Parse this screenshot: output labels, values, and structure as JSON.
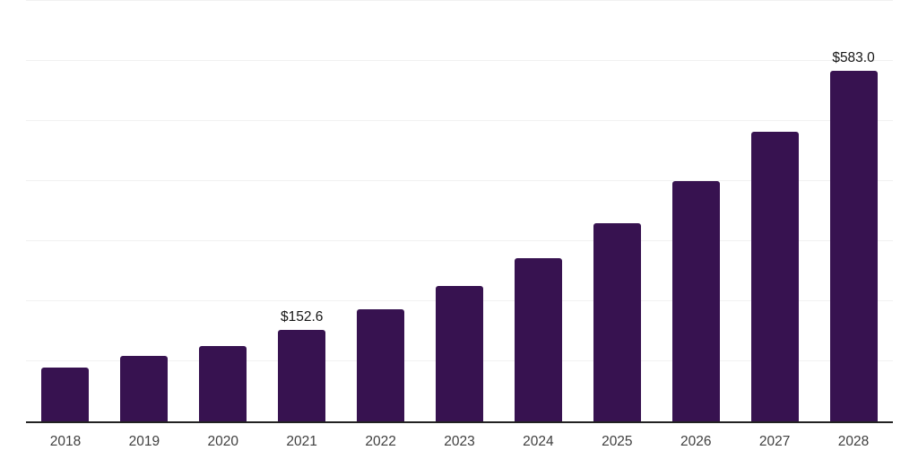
{
  "chart_data": {
    "type": "bar",
    "title": "",
    "xlabel": "",
    "ylabel": "",
    "categories": [
      "2018",
      "2019",
      "2020",
      "2021",
      "2022",
      "2023",
      "2024",
      "2025",
      "2026",
      "2027",
      "2028"
    ],
    "values": [
      90,
      109,
      126,
      152.6,
      186,
      225,
      272,
      330,
      400,
      482,
      583
    ],
    "data_labels": [
      "",
      "",
      "",
      "$152.6",
      "",
      "",
      "",
      "",
      "",
      "",
      "$583.0"
    ],
    "ylim": [
      0,
      700
    ],
    "gridline_step": 100,
    "grid": "horizontal",
    "legend": "none",
    "bar_color": "#371250"
  },
  "colors": {
    "background": "#ffffff",
    "bar": "#371250",
    "gridline": "#f1f1f1",
    "axis_line": "#222222",
    "tick_label": "#3f3f3f",
    "data_label": "#161616"
  }
}
